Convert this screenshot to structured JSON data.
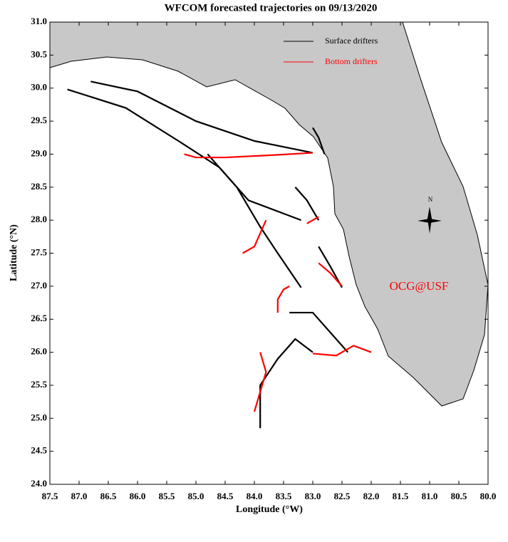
{
  "chart_data": {
    "type": "trajectory",
    "title": "WFCOM forecasted trajectories on 09/13/2020",
    "x_label": "Longitude (°W)",
    "y_label": "Latitude (°N)",
    "annotation": "OCG@USF",
    "compass_label": "N",
    "xlim": [
      87.5,
      80.0
    ],
    "ylim": [
      24.0,
      31.0
    ],
    "xticks": [
      87.5,
      {
        "value": 87,
        "label": "87.0"
      },
      86.5,
      {
        "value": 86,
        "label": "86.0"
      },
      85.5,
      {
        "value": 85,
        "label": "85.0"
      },
      84.5,
      {
        "value": 84,
        "label": "84.0"
      },
      83.5,
      {
        "value": 83,
        "label": "83.0"
      },
      82.5,
      {
        "value": 82,
        "label": "82.0"
      },
      81.5,
      {
        "value": 81,
        "label": "81.0"
      },
      80.5,
      {
        "value": 80,
        "label": "80.0"
      }
    ],
    "yticks": [
      {
        "value": 24,
        "label": "24.0"
      },
      24.5,
      {
        "value": 25,
        "label": "25.0"
      },
      25.5,
      {
        "value": 26,
        "label": "26.0"
      },
      26.5,
      {
        "value": 27,
        "label": "27.0"
      },
      27.5,
      {
        "value": 28,
        "label": "28.0"
      },
      28.5,
      {
        "value": 29,
        "label": "29.0"
      },
      29.5,
      {
        "value": 30,
        "label": "30.0"
      },
      30.5,
      {
        "value": 31,
        "label": "31.0"
      }
    ],
    "series": [
      {
        "name": "Surface drifters",
        "color": "#000000",
        "tracks": [
          {
            "x": [
              83.0,
              84.0,
              85.0,
              86.0,
              86.8
            ],
            "y": [
              29.02,
              29.2,
              29.5,
              29.95,
              30.1
            ]
          },
          {
            "x": [
              83.2,
              84.1,
              84.6,
              85.3,
              86.2,
              87.2
            ],
            "y": [
              28.0,
              28.3,
              28.8,
              29.2,
              29.7,
              29.98
            ]
          },
          {
            "x": [
              83.2,
              83.6,
              83.9,
              84.3,
              84.8
            ],
            "y": [
              26.98,
              27.5,
              27.9,
              28.5,
              29.0
            ]
          },
          {
            "x": [
              82.4,
              82.7,
              83.0,
              83.4
            ],
            "y": [
              26.0,
              26.3,
              26.6,
              26.6
            ]
          },
          {
            "x": [
              83.0,
              83.3,
              83.6,
              83.9,
              83.9
            ],
            "y": [
              26.0,
              26.2,
              25.9,
              25.5,
              24.85
            ]
          },
          {
            "x": [
              82.8,
              82.9,
              83.0
            ],
            "y": [
              29.0,
              29.25,
              29.4
            ]
          },
          {
            "x": [
              82.5,
              82.7,
              82.9
            ],
            "y": [
              26.98,
              27.3,
              27.6
            ]
          },
          {
            "x": [
              82.9,
              83.1,
              83.3
            ],
            "y": [
              28.0,
              28.3,
              28.5
            ]
          }
        ]
      },
      {
        "name": "Bottom drifters",
        "color": "#ff0000",
        "tracks": [
          {
            "x": [
              83.0,
              83.8,
              84.5,
              85.0,
              85.2
            ],
            "y": [
              29.02,
              28.98,
              28.95,
              28.95,
              29.0
            ]
          },
          {
            "x": [
              83.8,
              83.9,
              84.0,
              84.2
            ],
            "y": [
              28.0,
              27.8,
              27.6,
              27.5
            ]
          },
          {
            "x": [
              83.4,
              83.5,
              83.6,
              83.6
            ],
            "y": [
              27.0,
              26.95,
              26.8,
              26.6
            ]
          },
          {
            "x": [
              83.9,
              83.8,
              83.9,
              84.0
            ],
            "y": [
              26.0,
              25.7,
              25.4,
              25.1
            ]
          },
          {
            "x": [
              82.0,
              82.3,
              82.6,
              83.0
            ],
            "y": [
              26.0,
              26.1,
              25.95,
              25.98
            ]
          },
          {
            "x": [
              82.5,
              82.7,
              82.9
            ],
            "y": [
              27.0,
              27.2,
              27.35
            ]
          },
          {
            "x": [
              82.9,
              83.1
            ],
            "y": [
              28.05,
              27.95
            ]
          }
        ]
      }
    ]
  }
}
